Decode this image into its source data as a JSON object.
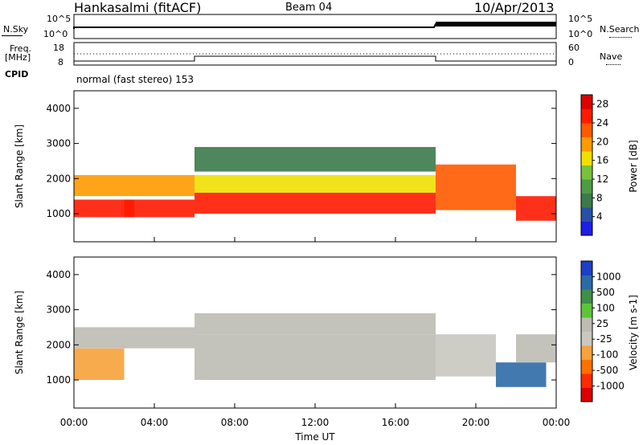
{
  "header": {
    "station": "Hankasalmi (fitACF)",
    "beam": "Beam 04",
    "date": "10/Apr/2013"
  },
  "top_panels": {
    "nsky_label": "N.Sky",
    "nsearch_label": "N.Search",
    "nsky_ticks": [
      "10^5",
      "10^0"
    ],
    "nsearch_ticks": [
      "10^5",
      "10^0"
    ],
    "freq_label_1": "Freq.",
    "freq_label_2": "[MHz]",
    "freq_ticks": [
      "18",
      "8"
    ],
    "nave_label": "Nave",
    "nave_ticks": [
      "60",
      "0"
    ],
    "cpid_label": "CPID",
    "cpid_text": "normal (fast stereo) 153"
  },
  "colors": {
    "power_scale": [
      "#1e1ee6",
      "#2a4fa6",
      "#3c7a4a",
      "#4f9a45",
      "#76c23c",
      "#f0e000",
      "#ff9a00",
      "#ff5a00",
      "#ff1a00",
      "#dd0000"
    ],
    "velocity_scale": [
      "#dd0000",
      "#ff2a00",
      "#ff7000",
      "#f7a23a",
      "#c8c8c0",
      "#bdbdb4",
      "#5fc43a",
      "#3f8f47",
      "#2d6aa6",
      "#1e3fc8"
    ]
  },
  "chart_data": [
    {
      "type": "heatmap",
      "name": "power",
      "title": "",
      "xlabel": "Time UT",
      "ylabel": "Slant Range [km]",
      "x_ticks": [
        "00:00",
        "04:00",
        "08:00",
        "12:00",
        "16:00",
        "20:00",
        "00:00"
      ],
      "xlim_hours": [
        0,
        24
      ],
      "y_ticks": [
        1000,
        2000,
        3000,
        4000
      ],
      "ylim": [
        200,
        4500
      ],
      "colorbar_label": "Power [dB]",
      "colorbar_ticks": [
        "4",
        "8",
        "12",
        "16",
        "20",
        "24",
        "28"
      ],
      "colorbar_range": [
        0,
        30
      ],
      "bands": [
        {
          "t0": 0.0,
          "t1": 3.0,
          "r0": 900,
          "r1": 1400,
          "v": 26
        },
        {
          "t0": 0.0,
          "t1": 6.0,
          "r0": 1500,
          "r1": 2100,
          "v": 18
        },
        {
          "t0": 2.5,
          "t1": 6.0,
          "r0": 900,
          "r1": 1400,
          "v": 24
        },
        {
          "t0": 6.0,
          "t1": 18.0,
          "r0": 1000,
          "r1": 1600,
          "v": 26
        },
        {
          "t0": 6.0,
          "t1": 18.0,
          "r0": 1600,
          "r1": 2100,
          "v": 16
        },
        {
          "t0": 6.0,
          "t1": 18.0,
          "r0": 2200,
          "r1": 2900,
          "v": 7
        },
        {
          "t0": 18.0,
          "t1": 22.0,
          "r0": 1100,
          "r1": 2400,
          "v": 22
        },
        {
          "t0": 22.0,
          "t1": 24.0,
          "r0": 800,
          "r1": 1500,
          "v": 26
        }
      ]
    },
    {
      "type": "heatmap",
      "name": "velocity",
      "title": "",
      "xlabel": "Time UT",
      "ylabel": "Slant Range [km]",
      "x_ticks": [
        "00:00",
        "04:00",
        "08:00",
        "12:00",
        "16:00",
        "20:00",
        "00:00"
      ],
      "xlim_hours": [
        0,
        24
      ],
      "y_ticks": [
        1000,
        2000,
        3000,
        4000
      ],
      "ylim": [
        200,
        4500
      ],
      "colorbar_label": "Velocity [m s-1]",
      "colorbar_ticks": [
        "1000",
        "500",
        "100",
        "25",
        "-25",
        "-100",
        "-500",
        "-1000"
      ],
      "bands": [
        {
          "t0": 0.0,
          "t1": 2.5,
          "r0": 1000,
          "r1": 1900,
          "v": -300
        },
        {
          "t0": 0.0,
          "t1": 6.0,
          "r0": 1900,
          "r1": 2500,
          "v": 0
        },
        {
          "t0": 6.0,
          "t1": 18.0,
          "r0": 1000,
          "r1": 2300,
          "v": 0
        },
        {
          "t0": 6.0,
          "t1": 18.0,
          "r0": 2300,
          "r1": 2900,
          "v": 10
        },
        {
          "t0": 18.0,
          "t1": 21.0,
          "r0": 1100,
          "r1": 2300,
          "v": -80
        },
        {
          "t0": 21.0,
          "t1": 23.5,
          "r0": 800,
          "r1": 1500,
          "v": 600
        },
        {
          "t0": 22.0,
          "t1": 24.0,
          "r0": 1500,
          "r1": 2300,
          "v": 0
        }
      ]
    }
  ]
}
